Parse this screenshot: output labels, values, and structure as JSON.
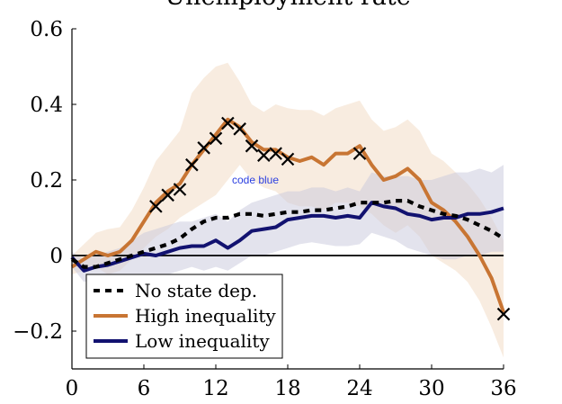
{
  "chart_data": {
    "type": "line",
    "title": "Unemployment rate",
    "xlabel": "",
    "ylabel": "",
    "xlim": [
      0,
      36
    ],
    "ylim": [
      -0.3,
      0.6
    ],
    "xticks": [
      0,
      6,
      12,
      18,
      24,
      30,
      36
    ],
    "xtick_labels": [
      "0",
      "6",
      "12",
      "18",
      "24",
      "30",
      "36"
    ],
    "yticks": [
      -0.2,
      0,
      0.2,
      0.4,
      0.6
    ],
    "ytick_labels": [
      "−0.2",
      "0",
      "0.2",
      "0.4",
      "0.6"
    ],
    "grid": false,
    "zero_line": true,
    "legend_position": "bottom-left",
    "annotation": "code blue",
    "annotation_at": [
      15.3,
      0.19
    ],
    "series": [
      {
        "name": "No state dep.",
        "color": "#000000",
        "style": "dashed",
        "x": [
          0,
          1,
          2,
          3,
          4,
          5,
          6,
          7,
          8,
          9,
          10,
          11,
          12,
          13,
          14,
          15,
          16,
          17,
          18,
          19,
          20,
          21,
          22,
          23,
          24,
          25,
          26,
          27,
          28,
          29,
          30,
          31,
          32,
          33,
          34,
          35,
          36
        ],
        "y": [
          -0.01,
          -0.03,
          -0.03,
          -0.02,
          -0.01,
          0.0,
          0.01,
          0.02,
          0.03,
          0.045,
          0.07,
          0.09,
          0.1,
          0.1,
          0.11,
          0.11,
          0.105,
          0.11,
          0.115,
          0.115,
          0.12,
          0.12,
          0.125,
          0.13,
          0.14,
          0.14,
          0.14,
          0.145,
          0.145,
          0.13,
          0.12,
          0.11,
          0.105,
          0.095,
          0.08,
          0.065,
          0.045
        ]
      },
      {
        "name": "High inequality",
        "color": "#c87533",
        "style": "solid",
        "x": [
          0,
          1,
          2,
          3,
          4,
          5,
          6,
          7,
          8,
          9,
          10,
          11,
          12,
          13,
          14,
          15,
          16,
          17,
          18,
          19,
          20,
          21,
          22,
          23,
          24,
          25,
          26,
          27,
          28,
          29,
          30,
          31,
          32,
          33,
          34,
          35,
          36
        ],
        "y": [
          -0.03,
          -0.01,
          0.01,
          0.0,
          0.01,
          0.04,
          0.09,
          0.14,
          0.17,
          0.19,
          0.24,
          0.28,
          0.32,
          0.36,
          0.34,
          0.3,
          0.28,
          0.28,
          0.26,
          0.25,
          0.26,
          0.24,
          0.27,
          0.27,
          0.29,
          0.24,
          0.2,
          0.21,
          0.23,
          0.2,
          0.14,
          0.12,
          0.09,
          0.05,
          0.0,
          -0.06,
          -0.15
        ],
        "band_upper": [
          0.0,
          0.03,
          0.06,
          0.07,
          0.075,
          0.12,
          0.18,
          0.25,
          0.29,
          0.33,
          0.43,
          0.47,
          0.5,
          0.51,
          0.46,
          0.4,
          0.38,
          0.4,
          0.39,
          0.385,
          0.385,
          0.37,
          0.39,
          0.4,
          0.41,
          0.36,
          0.33,
          0.34,
          0.36,
          0.33,
          0.27,
          0.25,
          0.22,
          0.19,
          0.15,
          0.1,
          0.04
        ],
        "band_lower": [
          -0.05,
          -0.04,
          -0.03,
          -0.05,
          -0.04,
          -0.01,
          0.02,
          0.05,
          0.07,
          0.1,
          0.12,
          0.14,
          0.16,
          0.2,
          0.24,
          0.2,
          0.18,
          0.17,
          0.14,
          0.13,
          0.13,
          0.12,
          0.14,
          0.14,
          0.13,
          0.11,
          0.08,
          0.06,
          0.08,
          0.05,
          0.0,
          -0.02,
          -0.04,
          -0.07,
          -0.12,
          -0.19,
          -0.27
        ]
      },
      {
        "name": "Low inequality",
        "color": "#121270",
        "style": "solid",
        "x": [
          0,
          1,
          2,
          3,
          4,
          5,
          6,
          7,
          8,
          9,
          10,
          11,
          12,
          13,
          14,
          15,
          16,
          17,
          18,
          19,
          20,
          21,
          22,
          23,
          24,
          25,
          26,
          27,
          28,
          29,
          30,
          31,
          32,
          33,
          34,
          35,
          36
        ],
        "y": [
          -0.005,
          -0.04,
          -0.03,
          -0.025,
          -0.015,
          -0.005,
          0.005,
          0.0,
          0.01,
          0.02,
          0.025,
          0.025,
          0.04,
          0.02,
          0.04,
          0.065,
          0.07,
          0.075,
          0.095,
          0.1,
          0.105,
          0.105,
          0.1,
          0.105,
          0.1,
          0.14,
          0.13,
          0.125,
          0.11,
          0.105,
          0.095,
          0.1,
          0.1,
          0.11,
          0.11,
          0.115,
          0.125
        ],
        "band_upper": [
          0.01,
          -0.01,
          0.0,
          0.01,
          0.02,
          0.04,
          0.06,
          0.07,
          0.08,
          0.09,
          0.09,
          0.1,
          0.11,
          0.09,
          0.12,
          0.14,
          0.15,
          0.16,
          0.17,
          0.17,
          0.18,
          0.18,
          0.17,
          0.18,
          0.17,
          0.22,
          0.21,
          0.21,
          0.21,
          0.2,
          0.2,
          0.21,
          0.22,
          0.22,
          0.23,
          0.22,
          0.24
        ],
        "band_lower": [
          -0.03,
          -0.07,
          -0.06,
          -0.06,
          -0.05,
          -0.05,
          -0.05,
          -0.06,
          -0.05,
          -0.04,
          -0.03,
          -0.04,
          -0.03,
          -0.04,
          -0.02,
          0.0,
          0.0,
          0.01,
          0.02,
          0.03,
          0.035,
          0.03,
          0.025,
          0.025,
          0.03,
          0.06,
          0.05,
          0.04,
          0.02,
          0.01,
          0.0,
          -0.01,
          -0.01,
          0.0,
          0.0,
          0.01,
          0.01
        ]
      },
      {
        "name": "",
        "color": "#000000",
        "style": "x-markers",
        "x": [
          7,
          8,
          9,
          10,
          11,
          12,
          13,
          14,
          15,
          16,
          17,
          18,
          24,
          36
        ],
        "y": [
          0.13,
          0.16,
          0.175,
          0.24,
          0.285,
          0.31,
          0.35,
          0.335,
          0.29,
          0.265,
          0.27,
          0.255,
          0.27,
          -0.155
        ]
      }
    ]
  }
}
